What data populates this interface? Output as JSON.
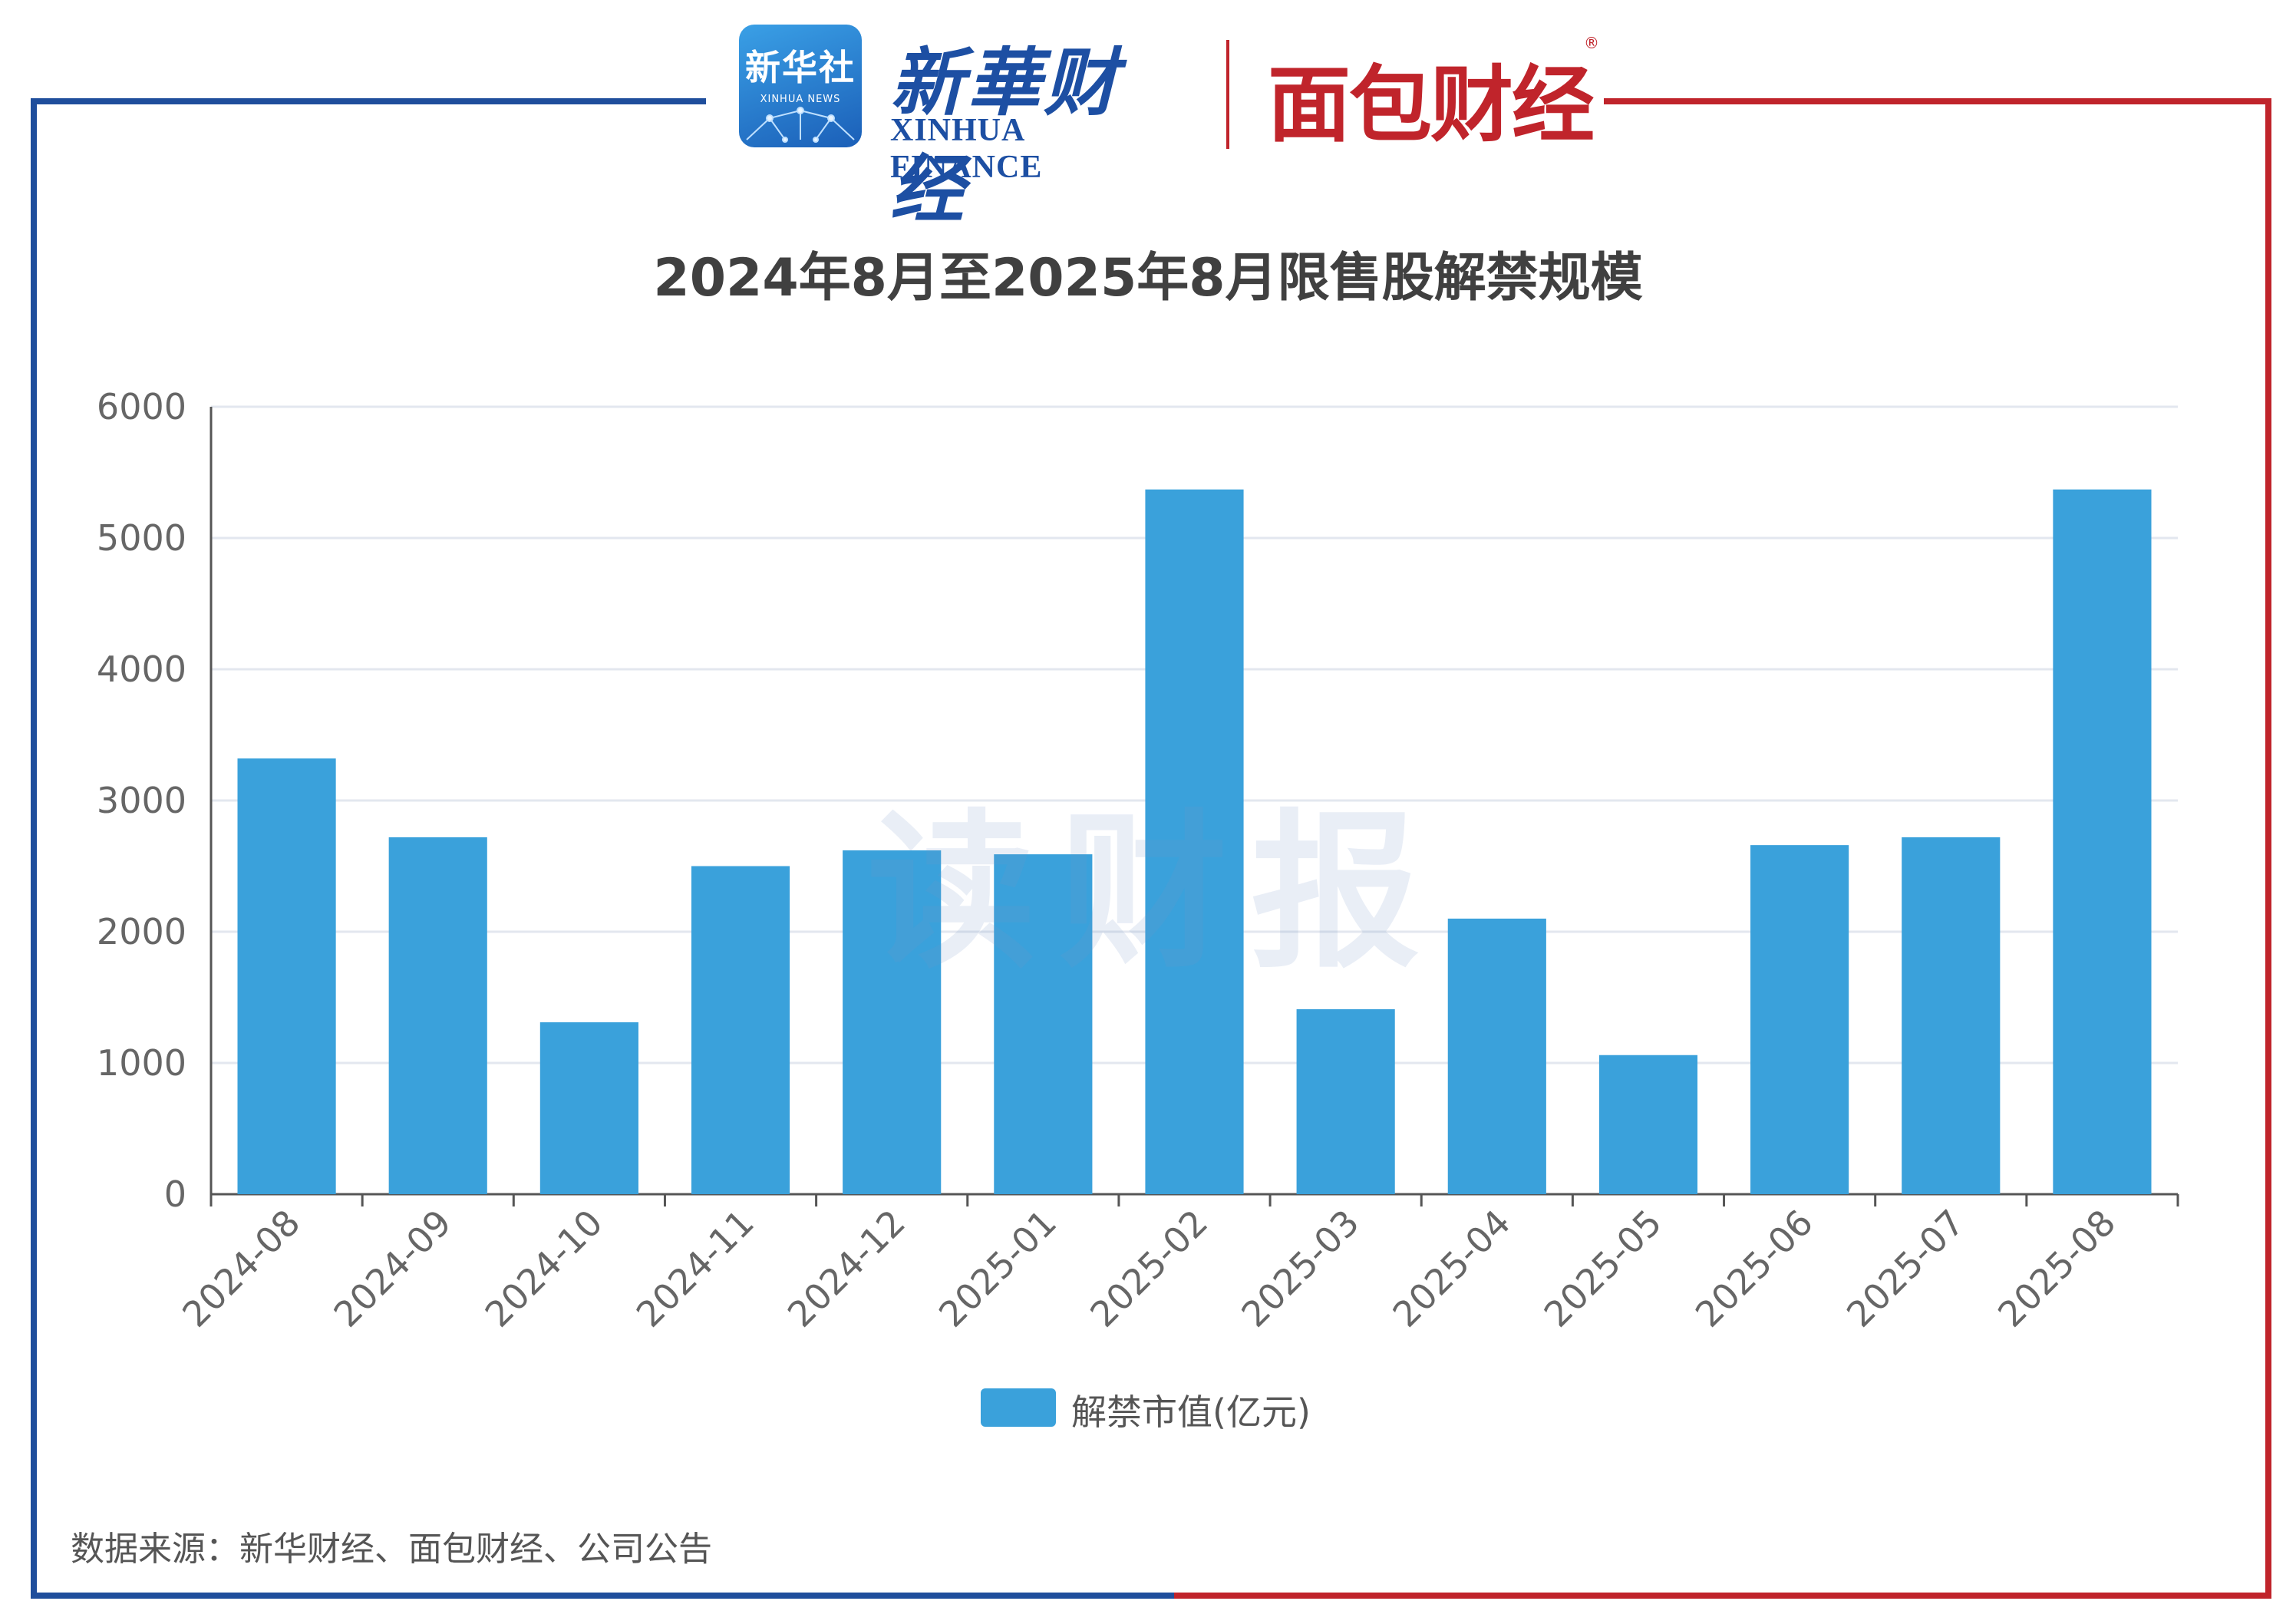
{
  "header": {
    "xinhua_logo": {
      "big": "新华社",
      "small": "XINHUA NEWS"
    },
    "xinhua_finance_logo": {
      "cn": "新華财经",
      "en": "XINHUA FINANCE"
    },
    "mianbao_logo": {
      "text": "面包财经",
      "registered": "®"
    }
  },
  "watermark": "读财报",
  "colors": {
    "bar": "#3aa1db",
    "frame_left": "#1f4e9c",
    "frame_right": "#c0242b",
    "grid": "#e3e7ef",
    "axis": "#555555"
  },
  "chart_data": {
    "type": "bar",
    "title": "2024年8月至2025年8月限售股解禁规模",
    "categories": [
      "2024-08",
      "2024-09",
      "2024-10",
      "2024-11",
      "2024-12",
      "2025-01",
      "2025-02",
      "2025-03",
      "2025-04",
      "2025-05",
      "2025-06",
      "2025-07",
      "2025-08"
    ],
    "series": [
      {
        "name": "解禁市值(亿元)",
        "values": [
          3320,
          2720,
          1310,
          2500,
          2620,
          2590,
          5370,
          1410,
          2100,
          1060,
          2660,
          2720,
          5370
        ]
      }
    ],
    "xlabel": "",
    "ylabel": "",
    "ylim": [
      0,
      6000
    ],
    "yticks": [
      0,
      1000,
      2000,
      3000,
      4000,
      5000,
      6000
    ],
    "grid": true,
    "legend_position": "bottom-center"
  },
  "source": "数据来源：新华财经、面包财经、公司公告"
}
